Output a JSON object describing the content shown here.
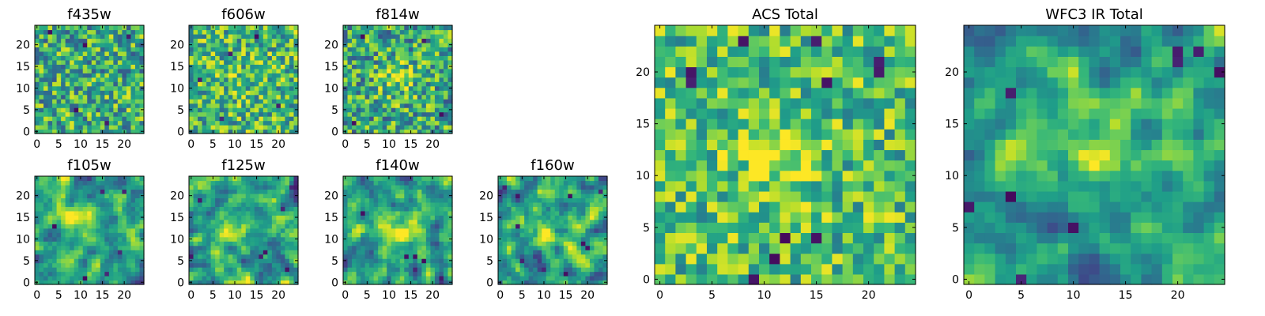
{
  "figure": {
    "panels": [
      {
        "id": "f435w",
        "title": "f435w",
        "xticks": [
          "0",
          "5",
          "10",
          "15",
          "20"
        ],
        "yticks": [
          "0",
          "5",
          "10",
          "15",
          "20"
        ],
        "pattern": "uniform",
        "brightness": 0.62,
        "contrast": 0.34,
        "blob": {
          "x": 12,
          "y": 12,
          "sigma": 3.5,
          "amp": 0.0
        },
        "dark_pixels": [
          [
            3,
            23
          ],
          [
            11,
            20
          ],
          [
            21,
            22
          ],
          [
            9,
            5
          ],
          [
            16,
            2
          ]
        ],
        "seed": 11
      },
      {
        "id": "f606w",
        "title": "f606w",
        "xticks": [
          "0",
          "5",
          "10",
          "15",
          "20"
        ],
        "yticks": [
          "0",
          "5",
          "10",
          "15",
          "20"
        ],
        "pattern": "uniform",
        "brightness": 0.66,
        "contrast": 0.32,
        "blob": {
          "x": 12,
          "y": 12,
          "sigma": 3.5,
          "amp": 0.05
        },
        "dark_pixels": [
          [
            7,
            3
          ],
          [
            15,
            22
          ],
          [
            2,
            12
          ],
          [
            20,
            6
          ],
          [
            9,
            18
          ]
        ],
        "seed": 23
      },
      {
        "id": "f814w",
        "title": "f814w",
        "xticks": [
          "0",
          "5",
          "10",
          "15",
          "20"
        ],
        "yticks": [
          "0",
          "5",
          "10",
          "15",
          "20"
        ],
        "pattern": "uniform",
        "brightness": 0.6,
        "contrast": 0.34,
        "blob": {
          "x": 12,
          "y": 12,
          "sigma": 3.0,
          "amp": 0.22
        },
        "dark_pixels": [
          [
            4,
            22
          ],
          [
            18,
            21
          ],
          [
            22,
            4
          ],
          [
            2,
            2
          ]
        ],
        "seed": 37
      },
      {
        "id": "f105w",
        "title": "f105w",
        "xticks": [
          "0",
          "5",
          "10",
          "15",
          "20"
        ],
        "yticks": [
          "0",
          "5",
          "10",
          "15",
          "20"
        ],
        "pattern": "smooth",
        "brightness": 0.57,
        "contrast": 0.3,
        "blob": {
          "x": 11,
          "y": 14,
          "sigma": 3.0,
          "amp": 0.28
        },
        "dark_pixels": [
          [
            15,
            21
          ],
          [
            20,
            21
          ],
          [
            19,
            7
          ],
          [
            11,
            1
          ],
          [
            4,
            13
          ],
          [
            16,
            2
          ]
        ],
        "seed": 41
      },
      {
        "id": "f125w",
        "title": "f125w",
        "xticks": [
          "0",
          "5",
          "10",
          "15",
          "20"
        ],
        "yticks": [
          "0",
          "5",
          "10",
          "15",
          "20"
        ],
        "pattern": "smooth",
        "brightness": 0.58,
        "contrast": 0.32,
        "blob": {
          "x": 7,
          "y": 11,
          "sigma": 3.0,
          "amp": 0.2
        },
        "dark_pixels": [
          [
            2,
            19
          ],
          [
            16,
            6
          ],
          [
            17,
            7
          ],
          [
            21,
            17
          ],
          [
            0,
            6
          ],
          [
            22,
            3
          ],
          [
            23,
            22
          ]
        ],
        "seed": 53
      },
      {
        "id": "f140w",
        "title": "f140w",
        "xticks": [
          "0",
          "5",
          "10",
          "15",
          "20"
        ],
        "yticks": [
          "0",
          "5",
          "10",
          "15",
          "20"
        ],
        "pattern": "smooth",
        "brightness": 0.56,
        "contrast": 0.32,
        "blob": {
          "x": 13,
          "y": 13,
          "sigma": 3.0,
          "amp": 0.3
        },
        "dark_pixels": [
          [
            14,
            6
          ],
          [
            16,
            6
          ],
          [
            22,
            1
          ],
          [
            18,
            5
          ],
          [
            4,
            16
          ]
        ],
        "seed": 67
      },
      {
        "id": "f160w",
        "title": "f160w",
        "xticks": [
          "0",
          "5",
          "10",
          "15",
          "20"
        ],
        "yticks": [
          "0",
          "5",
          "10",
          "15",
          "20"
        ],
        "pattern": "smooth",
        "brightness": 0.56,
        "contrast": 0.34,
        "blob": {
          "x": 11,
          "y": 11,
          "sigma": 3.0,
          "amp": 0.3
        },
        "dark_pixels": [
          [
            1,
            22
          ],
          [
            4,
            20
          ],
          [
            4,
            13
          ],
          [
            5,
            5
          ],
          [
            19,
            9
          ],
          [
            20,
            8
          ],
          [
            23,
            21
          ],
          [
            16,
            20
          ],
          [
            10,
            3
          ],
          [
            15,
            2
          ]
        ],
        "seed": 79
      },
      {
        "id": "acs-total",
        "title": "ACS Total",
        "xticks": [
          "0",
          "5",
          "10",
          "15",
          "20"
        ],
        "yticks": [
          "0",
          "5",
          "10",
          "15",
          "20"
        ],
        "pattern": "uniform",
        "brightness": 0.7,
        "contrast": 0.28,
        "blob": {
          "x": 11,
          "y": 12,
          "sigma": 2.6,
          "amp": 0.25
        },
        "dark_pixels": [
          [
            3,
            20
          ],
          [
            3,
            19
          ],
          [
            8,
            23
          ],
          [
            15,
            23
          ],
          [
            21,
            21
          ],
          [
            21,
            20
          ],
          [
            16,
            19
          ],
          [
            12,
            4
          ],
          [
            15,
            4
          ],
          [
            11,
            2
          ],
          [
            9,
            0
          ]
        ],
        "seed": 97
      },
      {
        "id": "wfc3-ir-total",
        "title": "WFC3 IR Total",
        "xticks": [
          "0",
          "5",
          "10",
          "15",
          "20"
        ],
        "yticks": [
          "0",
          "5",
          "10",
          "15",
          "20"
        ],
        "pattern": "smooth",
        "brightness": 0.56,
        "contrast": 0.26,
        "blob": {
          "x": 12,
          "y": 13,
          "sigma": 2.6,
          "amp": 0.33
        },
        "dark_pixels": [
          [
            20,
            22
          ],
          [
            20,
            21
          ],
          [
            24,
            20
          ],
          [
            22,
            22
          ],
          [
            4,
            8
          ],
          [
            10,
            5
          ],
          [
            5,
            0
          ],
          [
            0,
            7
          ],
          [
            4,
            18
          ]
        ],
        "seed": 109
      }
    ]
  },
  "chart_data": [
    {
      "type": "heatmap",
      "title": "f435w",
      "xlim": [
        0,
        24
      ],
      "ylim": [
        0,
        24
      ],
      "grid": false,
      "colormap": "viridis",
      "grid_size": [
        25,
        25
      ],
      "xticks": [
        0,
        5,
        10,
        15,
        20
      ],
      "yticks": [
        0,
        5,
        10,
        15,
        20
      ],
      "feature": "noise-dominated, no clear central source"
    },
    {
      "type": "heatmap",
      "title": "f606w",
      "xlim": [
        0,
        24
      ],
      "ylim": [
        0,
        24
      ],
      "grid": false,
      "colormap": "viridis",
      "grid_size": [
        25,
        25
      ],
      "xticks": [
        0,
        5,
        10,
        15,
        20
      ],
      "yticks": [
        0,
        5,
        10,
        15,
        20
      ],
      "feature": "noise-dominated, faint central excess"
    },
    {
      "type": "heatmap",
      "title": "f814w",
      "xlim": [
        0,
        24
      ],
      "ylim": [
        0,
        24
      ],
      "grid": false,
      "colormap": "viridis",
      "grid_size": [
        25,
        25
      ],
      "xticks": [
        0,
        5,
        10,
        15,
        20
      ],
      "yticks": [
        0,
        5,
        10,
        15,
        20
      ],
      "source_center": [
        12,
        12
      ]
    },
    {
      "type": "heatmap",
      "title": "f105w",
      "xlim": [
        0,
        24
      ],
      "ylim": [
        0,
        24
      ],
      "grid": false,
      "colormap": "viridis",
      "grid_size": [
        25,
        25
      ],
      "xticks": [
        0,
        5,
        10,
        15,
        20
      ],
      "yticks": [
        0,
        5,
        10,
        15,
        20
      ],
      "source_center": [
        11,
        14
      ]
    },
    {
      "type": "heatmap",
      "title": "f125w",
      "xlim": [
        0,
        24
      ],
      "ylim": [
        0,
        24
      ],
      "grid": false,
      "colormap": "viridis",
      "grid_size": [
        25,
        25
      ],
      "xticks": [
        0,
        5,
        10,
        15,
        20
      ],
      "yticks": [
        0,
        5,
        10,
        15,
        20
      ],
      "source_center": [
        7,
        11
      ]
    },
    {
      "type": "heatmap",
      "title": "f140w",
      "xlim": [
        0,
        24
      ],
      "ylim": [
        0,
        24
      ],
      "grid": false,
      "colormap": "viridis",
      "grid_size": [
        25,
        25
      ],
      "xticks": [
        0,
        5,
        10,
        15,
        20
      ],
      "yticks": [
        0,
        5,
        10,
        15,
        20
      ],
      "source_center": [
        13,
        13
      ]
    },
    {
      "type": "heatmap",
      "title": "f160w",
      "xlim": [
        0,
        24
      ],
      "ylim": [
        0,
        24
      ],
      "grid": false,
      "colormap": "viridis",
      "grid_size": [
        25,
        25
      ],
      "xticks": [
        0,
        5,
        10,
        15,
        20
      ],
      "yticks": [
        0,
        5,
        10,
        15,
        20
      ],
      "source_center": [
        11,
        11
      ]
    },
    {
      "type": "heatmap",
      "title": "ACS Total",
      "xlim": [
        0,
        24
      ],
      "ylim": [
        0,
        24
      ],
      "grid": false,
      "colormap": "viridis",
      "grid_size": [
        25,
        25
      ],
      "xticks": [
        0,
        5,
        10,
        15,
        20
      ],
      "yticks": [
        0,
        5,
        10,
        15,
        20
      ],
      "source_center": [
        11,
        12
      ]
    },
    {
      "type": "heatmap",
      "title": "WFC3 IR Total",
      "xlim": [
        0,
        24
      ],
      "ylim": [
        0,
        24
      ],
      "grid": false,
      "colormap": "viridis",
      "grid_size": [
        25,
        25
      ],
      "xticks": [
        0,
        5,
        10,
        15,
        20
      ],
      "yticks": [
        0,
        5,
        10,
        15,
        20
      ],
      "source_center": [
        12,
        13
      ]
    }
  ]
}
